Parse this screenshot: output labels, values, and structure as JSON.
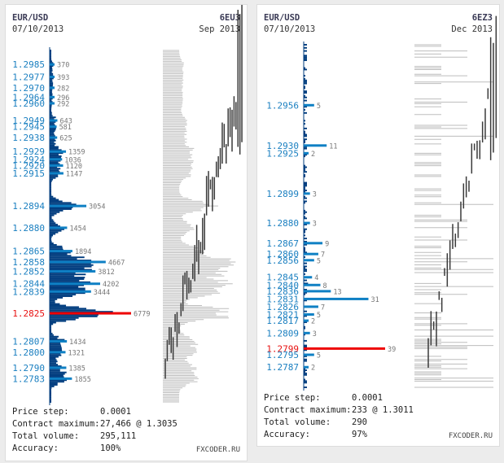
{
  "colors": {
    "level_label": "#1a7fc0",
    "level_label_max": "#e81010",
    "histogram_fill": "#003c7e",
    "level_bar": "#0f80c4",
    "max_bar": "#ee0000",
    "volume_label": "#777777",
    "profile_line": "#bdbdbd",
    "price_bar": "#3a3a3a"
  },
  "panels": [
    {
      "symbol": "EUR/USD",
      "date": "07/10/2013",
      "contract": "6EU3",
      "month": "Sep 2013",
      "stats": [
        {
          "label": "Price step:",
          "value": "0.0001"
        },
        {
          "label": "Contract maximum:",
          "value": "27,466 @ 1.3035"
        },
        {
          "label": "Total volume:",
          "value": "295,111"
        },
        {
          "label": "Accuracy:",
          "value": "100%"
        }
      ],
      "brand": "FXCODER.RU",
      "chart_data": {
        "type": "bar",
        "orientation": "horizontal",
        "title": "EUR/USD 6EU3 Sep 2013 volume profile",
        "price_range": [
          1.2768,
          1.2994
        ],
        "price_step": 0.0001,
        "max_level": {
          "price": 1.2825,
          "volume": 6779
        },
        "levels": [
          {
            "price": 1.2985,
            "volume": 370
          },
          {
            "price": 1.2977,
            "volume": 393
          },
          {
            "price": 1.297,
            "volume": 282
          },
          {
            "price": 1.2964,
            "volume": 296
          },
          {
            "price": 1.296,
            "volume": 292
          },
          {
            "price": 1.2949,
            "volume": 643
          },
          {
            "price": 1.2945,
            "volume": 581
          },
          {
            "price": 1.2938,
            "volume": 625
          },
          {
            "price": 1.2929,
            "volume": 1359
          },
          {
            "price": 1.2924,
            "volume": 1036
          },
          {
            "price": 1.292,
            "volume": 1120
          },
          {
            "price": 1.2915,
            "volume": 1147
          },
          {
            "price": 1.2894,
            "volume": 3054
          },
          {
            "price": 1.288,
            "volume": 1454
          },
          {
            "price": 1.2865,
            "volume": 1894
          },
          {
            "price": 1.2858,
            "volume": 4667
          },
          {
            "price": 1.2852,
            "volume": 3812
          },
          {
            "price": 1.2844,
            "volume": 4202
          },
          {
            "price": 1.2839,
            "volume": 3444
          },
          {
            "price": 1.2825,
            "volume": 6779
          },
          {
            "price": 1.2807,
            "volume": 1434
          },
          {
            "price": 1.28,
            "volume": 1321
          },
          {
            "price": 1.279,
            "volume": 1385
          },
          {
            "price": 1.2783,
            "volume": 1855
          }
        ]
      }
    },
    {
      "symbol": "EUR/USD",
      "date": "07/10/2013",
      "contract": "6EZ3",
      "month": "Dec 2013",
      "stats": [
        {
          "label": "Price step:",
          "value": "0.0001"
        },
        {
          "label": "Contract maximum:",
          "value": "233 @ 1.3011"
        },
        {
          "label": "Total volume:",
          "value": "290"
        },
        {
          "label": "Accuracy:",
          "value": "97%"
        }
      ],
      "brand": "FXCODER.RU",
      "chart_data": {
        "type": "bar",
        "orientation": "horizontal",
        "title": "EUR/USD 6EZ3 Dec 2013 volume profile",
        "price_range": [
          1.2774,
          1.2995
        ],
        "price_step": 0.0001,
        "max_level": {
          "price": 1.2799,
          "volume": 39
        },
        "levels": [
          {
            "price": 1.2956,
            "volume": 5
          },
          {
            "price": 1.293,
            "volume": 11
          },
          {
            "price": 1.2925,
            "volume": 2
          },
          {
            "price": 1.2899,
            "volume": 3
          },
          {
            "price": 1.288,
            "volume": 3
          },
          {
            "price": 1.2867,
            "volume": 9
          },
          {
            "price": 1.286,
            "volume": 7
          },
          {
            "price": 1.2856,
            "volume": 5
          },
          {
            "price": 1.2845,
            "volume": 4
          },
          {
            "price": 1.284,
            "volume": 8
          },
          {
            "price": 1.2836,
            "volume": 13
          },
          {
            "price": 1.2831,
            "volume": 31
          },
          {
            "price": 1.2826,
            "volume": 7
          },
          {
            "price": 1.2821,
            "volume": 5
          },
          {
            "price": 1.2817,
            "volume": 2
          },
          {
            "price": 1.2809,
            "volume": 3
          },
          {
            "price": 1.2799,
            "volume": 39
          },
          {
            "price": 1.2795,
            "volume": 5
          },
          {
            "price": 1.2787,
            "volume": 2
          }
        ]
      }
    }
  ]
}
